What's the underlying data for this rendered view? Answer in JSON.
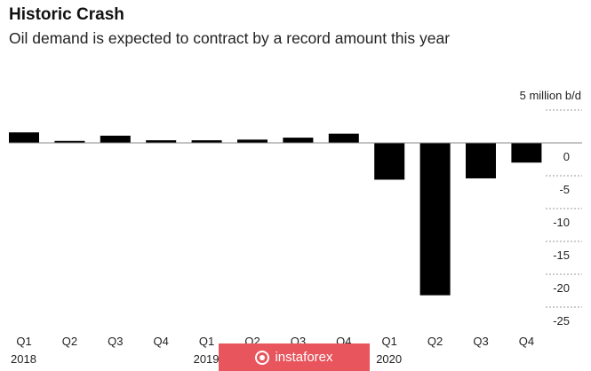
{
  "chart_data": {
    "type": "bar",
    "title": "Historic Crash",
    "subtitle": "Oil demand is expected to contract by a record amount this year",
    "unit_label": "5 million b/d",
    "categories": [
      "Q1",
      "Q2",
      "Q3",
      "Q4",
      "Q1",
      "Q2",
      "Q3",
      "Q4",
      "Q1",
      "Q2",
      "Q3",
      "Q4"
    ],
    "years": [
      {
        "label": "2018",
        "index": 0
      },
      {
        "label": "2019",
        "index": 4
      },
      {
        "label": "2020",
        "index": 8
      }
    ],
    "values": [
      1.6,
      0.3,
      1.1,
      0.4,
      0.4,
      0.5,
      0.8,
      1.4,
      -5.6,
      -23.2,
      -5.4,
      -3.0
    ],
    "yticks": [
      5,
      0,
      -5,
      -10,
      -15,
      -20,
      -25
    ],
    "ytick_labels": [
      "",
      "0",
      "-5",
      "-10",
      "-15",
      "-20",
      "-25"
    ],
    "ylim": [
      -27,
      5
    ],
    "grid": "dashed-right",
    "bar_color": "#000000"
  },
  "watermark": {
    "text": "instaforex",
    "icon": "instaforex-logo-icon",
    "color": "#e8555d"
  }
}
